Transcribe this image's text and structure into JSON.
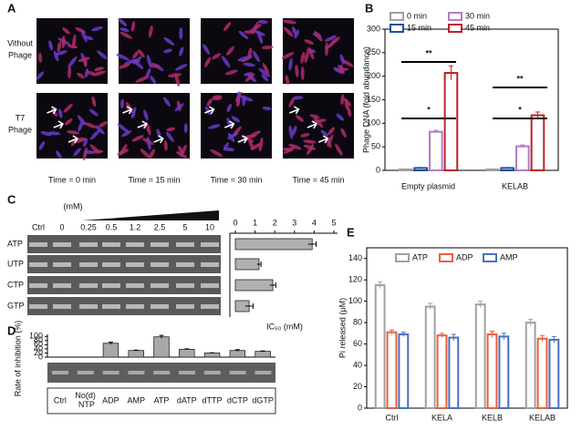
{
  "figure": {
    "panel_labels": [
      "A",
      "B",
      "C",
      "D",
      "E"
    ]
  },
  "panel_a": {
    "row_labels": [
      [
        "Vithout",
        "Phage"
      ],
      [
        "T7",
        "Phage"
      ]
    ],
    "time_labels": [
      "Time = 0 min",
      "Time = 15 min",
      "Time = 30 min",
      "Time = 45 min"
    ]
  },
  "panel_c_gel": {
    "concentration_unit": "(mM)",
    "lane_labels": [
      "Ctrl",
      "0",
      "0.25",
      "0.5",
      "1.2",
      "2.5",
      "5",
      "10"
    ]
  },
  "chart_data": [
    {
      "type": "bar",
      "ylabel": "Phage DNA (fold abundance)",
      "categories": [
        "Empty plasmid",
        "KELAB"
      ],
      "series": [
        {
          "name": "0 min",
          "color": "#a0a0a0",
          "values": [
            2,
            2
          ],
          "errors": [
            0.5,
            0.5
          ]
        },
        {
          "name": "15 min",
          "color": "#1f4e9c",
          "values": [
            5,
            5
          ],
          "errors": [
            1,
            1
          ]
        },
        {
          "name": "30 min",
          "color": "#b07cc6",
          "values": [
            82,
            51
          ],
          "errors": [
            3,
            3
          ]
        },
        {
          "name": "45 min",
          "color": "#c0202a",
          "values": [
            207,
            117
          ],
          "errors": [
            15,
            7
          ]
        }
      ],
      "bar_style": "outline",
      "ylim": [
        0,
        300
      ],
      "yticks": [
        0,
        50,
        100,
        150,
        200,
        250,
        300
      ],
      "annotations": [
        "**",
        "*",
        "**",
        "*"
      ]
    },
    {
      "type": "hbar",
      "xlabel": "IC₅₀ (mM)",
      "categories": [
        "ATP",
        "UTP",
        "CTP",
        "GTP"
      ],
      "values": [
        3.9,
        1.2,
        1.9,
        0.7
      ],
      "errors": [
        0.2,
        0.1,
        0.15,
        0.2
      ],
      "color": "#b0b0b0",
      "xlim": [
        0,
        5
      ],
      "xticks": [
        0,
        1,
        2,
        3,
        4,
        5
      ]
    },
    {
      "type": "bar",
      "ylabel": "Rate of inhibition (%)",
      "categories": [
        "Ctrl",
        "No(d) NTP",
        "ADP",
        "AMP",
        "ATP",
        "dATP",
        "dTTP",
        "dCTP",
        "dGTP"
      ],
      "values": [
        null,
        null,
        67,
        32,
        98,
        38,
        20,
        32,
        28
      ],
      "errors": [
        null,
        null,
        5,
        2,
        7,
        2,
        1,
        4,
        2
      ],
      "color": "#a8a8a8",
      "bar_style": "filled",
      "ylim": [
        0,
        110
      ],
      "yticks": [
        0,
        20,
        40,
        60,
        80,
        100
      ]
    },
    {
      "type": "bar",
      "ylabel": "Pi released (μM)",
      "categories": [
        "Ctrl",
        "KELA",
        "KELB",
        "KELAB"
      ],
      "series": [
        {
          "name": "ATP",
          "color": "#a0a0a0",
          "values": [
            115,
            95,
            97,
            80
          ],
          "errors": [
            3,
            3,
            3,
            3
          ]
        },
        {
          "name": "ADP",
          "color": "#e8603c",
          "values": [
            71,
            68,
            69,
            65
          ],
          "errors": [
            2,
            2,
            3,
            3
          ]
        },
        {
          "name": "AMP",
          "color": "#4a6fc0",
          "values": [
            69,
            66,
            67,
            64
          ],
          "errors": [
            2,
            3,
            3,
            3
          ]
        }
      ],
      "bar_style": "outline",
      "ylim": [
        0,
        150
      ],
      "yticks": [
        0,
        20,
        40,
        60,
        80,
        100,
        120,
        140
      ]
    }
  ]
}
